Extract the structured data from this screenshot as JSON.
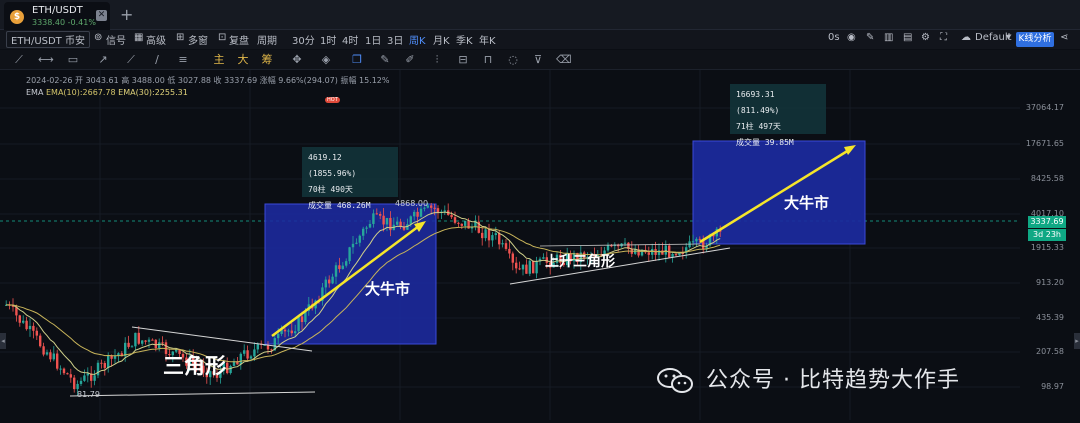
{
  "tab": {
    "coin_glyph": "$",
    "name": "ETH/USDT",
    "sub": "3338.40  -0.41%",
    "close": "✕",
    "add": "+"
  },
  "toolbar": {
    "symbol": "ETH/USDT 币安",
    "signal": "信号",
    "advanced": "高级",
    "multi": "多窗",
    "replay": "复盘",
    "period": "周期",
    "intervals": [
      "30分",
      "1时",
      "4时",
      "1日",
      "3日",
      "周K",
      "月K",
      "季K",
      "年K"
    ],
    "active_interval": "周K",
    "time_delay": "0s",
    "theme": "Default",
    "kline_analysis": "K线分析"
  },
  "drawbar": {
    "hot": "HOT",
    "zhu": "主",
    "da": "大",
    "chou": "筹"
  },
  "info": {
    "line1": "2024-02-26  开 3043.61  高 3488.00  低 3027.88  收 3337.69  涨幅 9.66%(294.07)  振幅 15.12%",
    "ema_label": "EMA",
    "ema10": "EMA(10):2667.78",
    "ema30": "EMA(30):2255.31"
  },
  "axis": [
    "37064.17",
    "17671.65",
    "8425.58",
    "4017.10",
    "1915.33",
    "913.20",
    "435.39",
    "207.58",
    "98.97"
  ],
  "current_price": "3337.69",
  "countdown": "3d 23h",
  "low_label": "81.79",
  "high_label": "4868.00",
  "stats": [
    {
      "l1": "4619.12 (1855.96%)",
      "l2": "70柱 490天",
      "l3": "成交量 468.26M"
    },
    {
      "l1": "16693.31 (811.49%)",
      "l2": "71柱 497天",
      "l3": "成交量 39.85M"
    }
  ],
  "annotations": {
    "triangle": "三角形",
    "bull1": "大牛市",
    "bull2": "大牛市",
    "ascending": "上升三角形"
  },
  "watermark": "公众号 · 比特趋势大作手",
  "colors": {
    "up": "#26a69a",
    "down": "#ef5350",
    "box": "#1f2fa8",
    "arrow": "#f5e52a"
  }
}
